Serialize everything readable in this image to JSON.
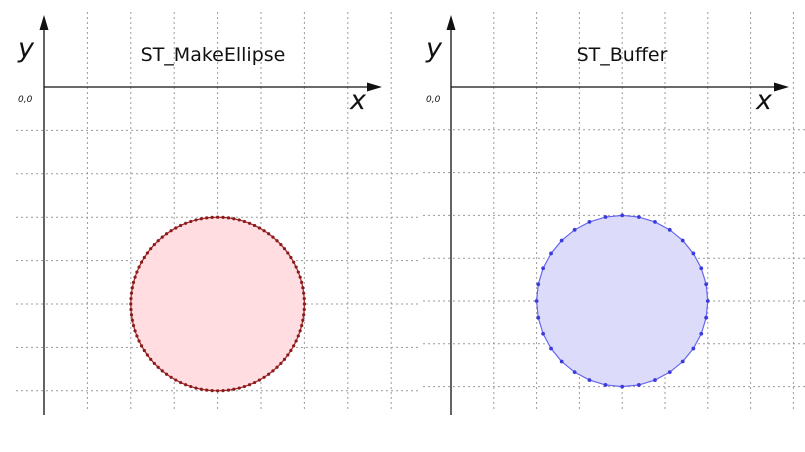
{
  "panels": [
    {
      "id": "make-ellipse",
      "title": "ST_MakeEllipse",
      "x_axis_label": "x",
      "y_axis_label": "y",
      "origin_label": "0,0",
      "vertex_count": 100,
      "fill_color": "#ffdde0",
      "stroke_color": "#a02828",
      "vertex_color": "#8b1a1a",
      "center_grid": [
        4,
        5
      ],
      "radius_grid": 2
    },
    {
      "id": "buffer",
      "title": "ST_Buffer",
      "x_axis_label": "x",
      "y_axis_label": "y",
      "origin_label": "0,0",
      "vertex_count": 32,
      "fill_color": "#dcdcfa",
      "stroke_color": "#6666ee",
      "vertex_color": "#3c3cdd",
      "center_grid": [
        4,
        5
      ],
      "radius_grid": 2
    }
  ]
}
